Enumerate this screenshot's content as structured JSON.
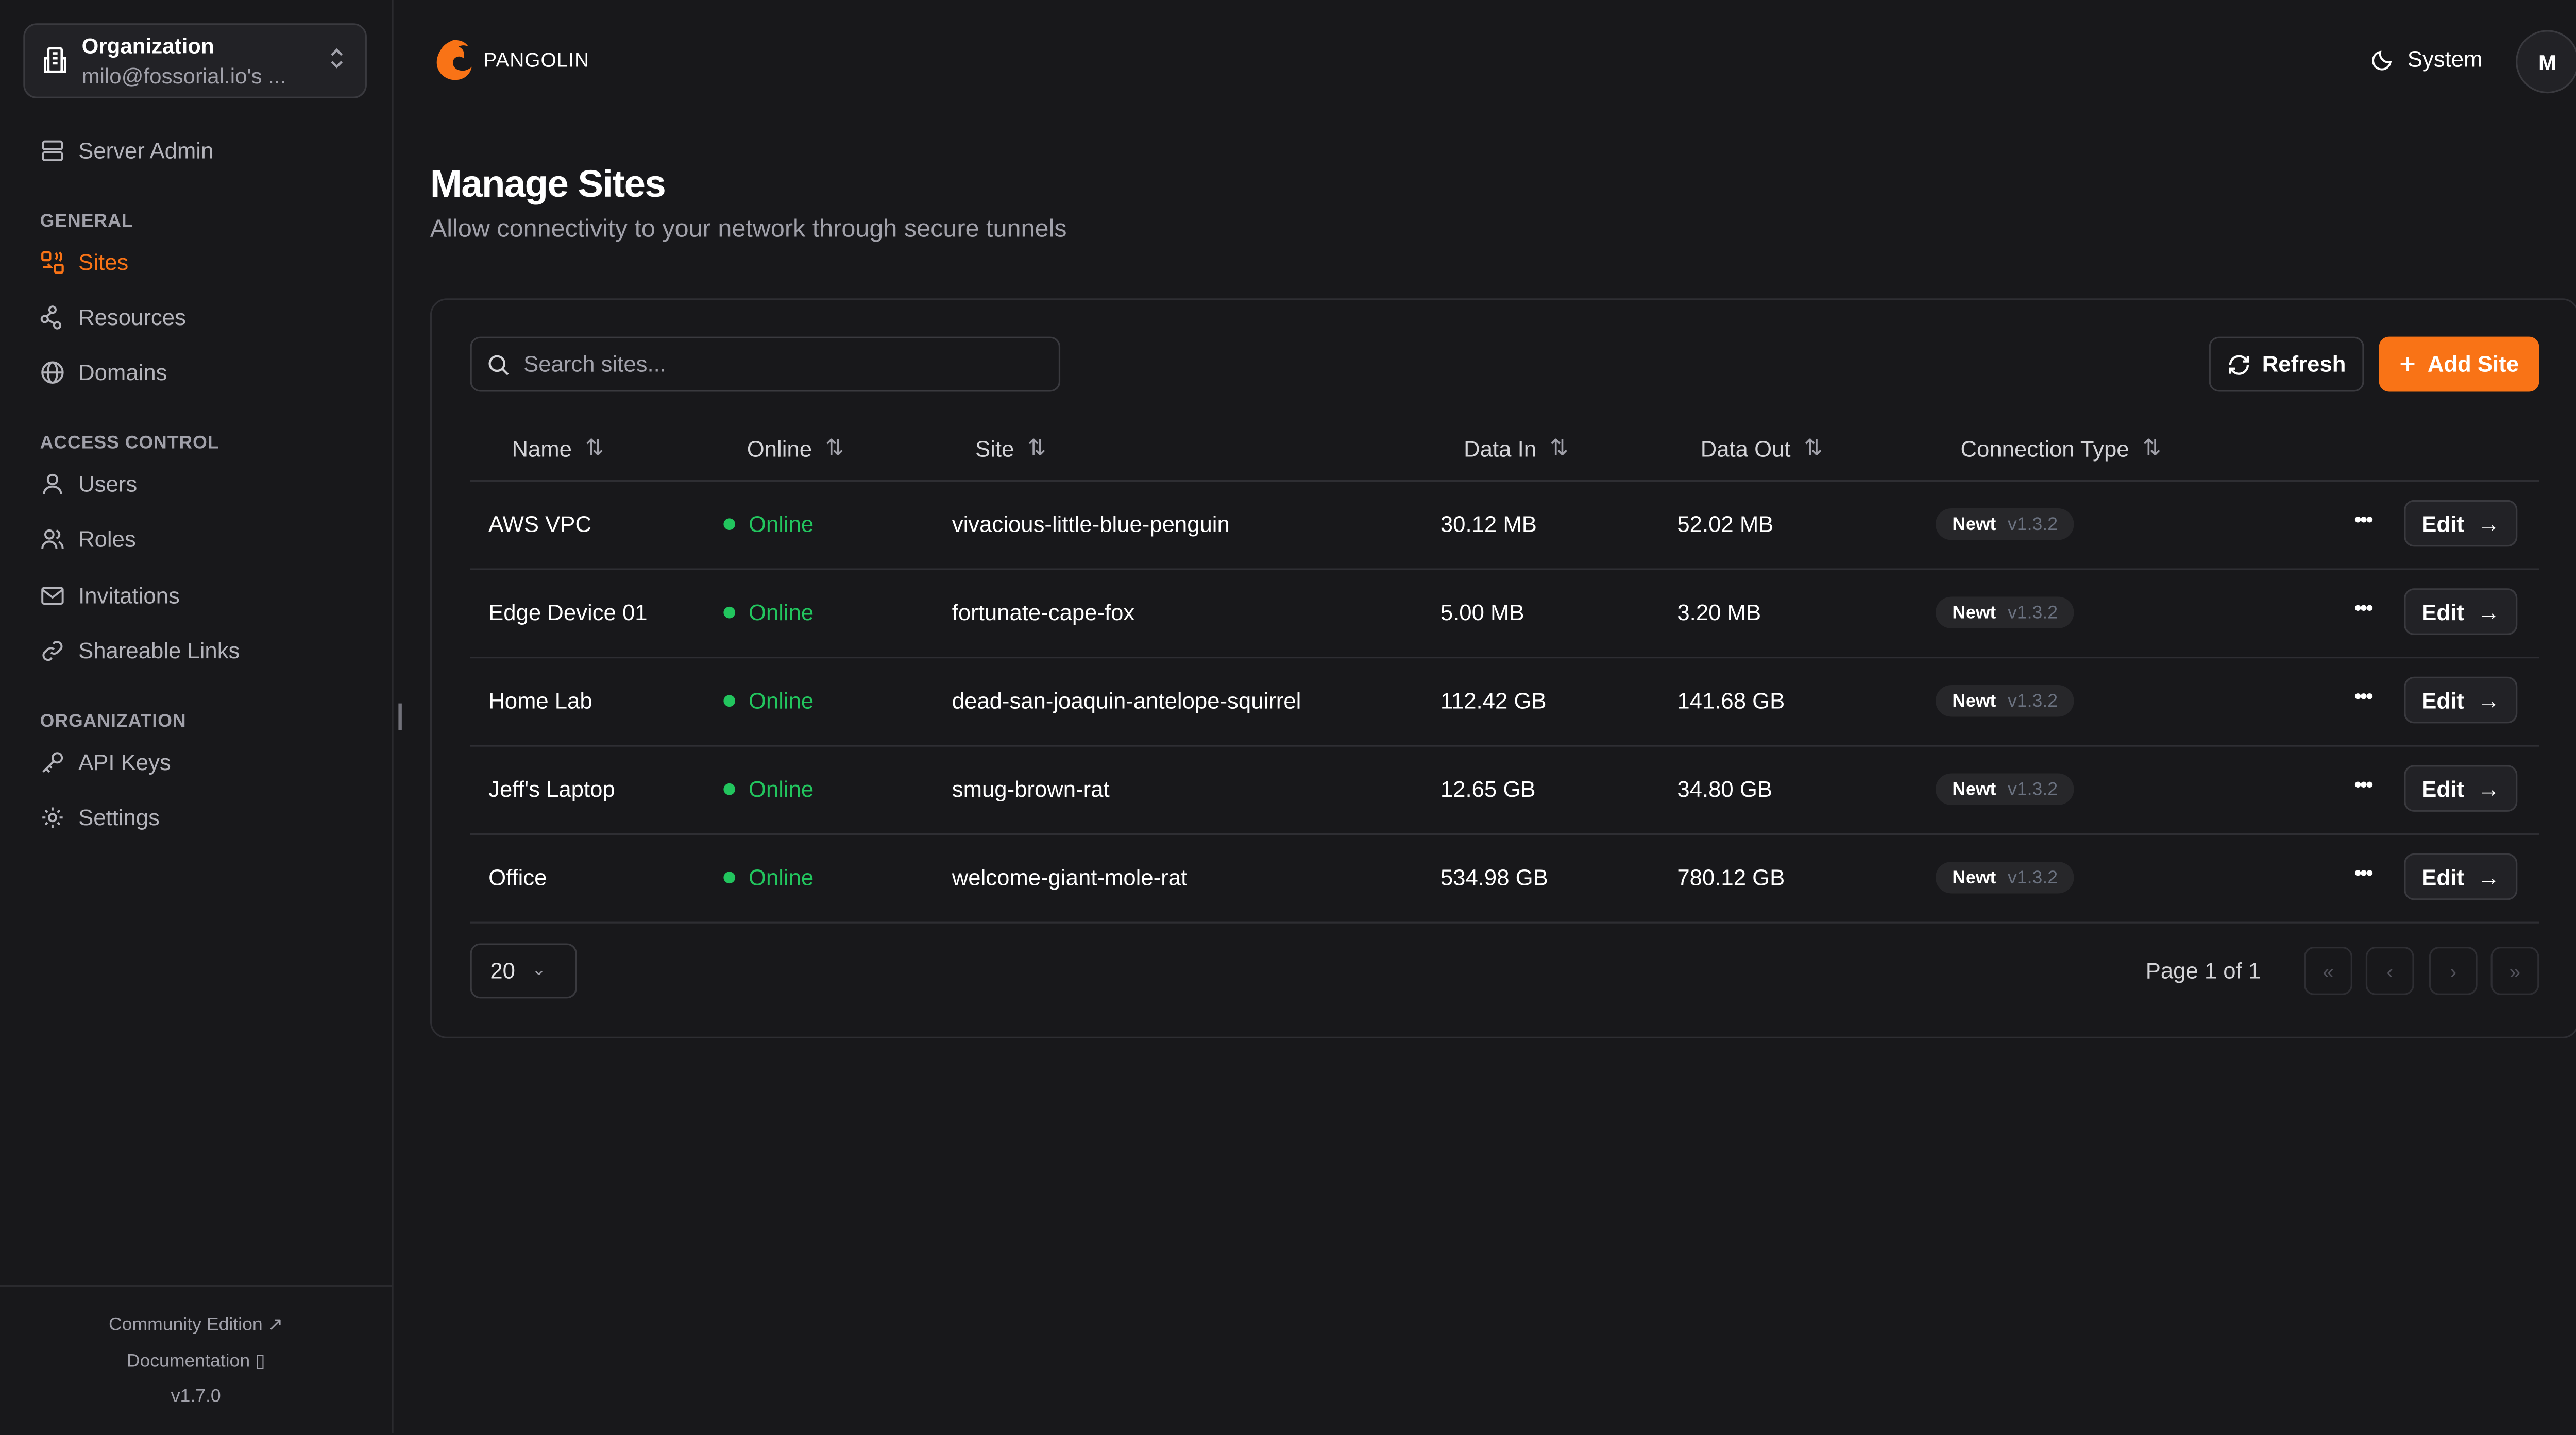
{
  "org": {
    "label": "Organization",
    "value": "milo@fossorial.io's ..."
  },
  "sidebar": {
    "server_admin": "Server Admin",
    "sections": [
      {
        "title": "GENERAL",
        "items": [
          {
            "label": "Sites",
            "icon": "sites-icon",
            "active": true
          },
          {
            "label": "Resources",
            "icon": "resources-icon"
          },
          {
            "label": "Domains",
            "icon": "globe-icon"
          }
        ]
      },
      {
        "title": "ACCESS CONTROL",
        "items": [
          {
            "label": "Users",
            "icon": "user-icon"
          },
          {
            "label": "Roles",
            "icon": "users-icon"
          },
          {
            "label": "Invitations",
            "icon": "mail-icon"
          },
          {
            "label": "Shareable Links",
            "icon": "link-icon"
          }
        ]
      },
      {
        "title": "ORGANIZATION",
        "items": [
          {
            "label": "API Keys",
            "icon": "key-icon"
          },
          {
            "label": "Settings",
            "icon": "gear-icon"
          }
        ]
      }
    ],
    "footer": {
      "community": "Community Edition",
      "docs": "Documentation",
      "version": "v1.7.0"
    }
  },
  "header": {
    "brand": "PANGOLIN",
    "theme": "System",
    "avatar": "M"
  },
  "page": {
    "title": "Manage Sites",
    "subtitle": "Allow connectivity to your network through secure tunnels"
  },
  "toolbar": {
    "search_placeholder": "Search sites...",
    "refresh": "Refresh",
    "add": "Add Site"
  },
  "table": {
    "columns": [
      "Name",
      "Online",
      "Site",
      "Data In",
      "Data Out",
      "Connection Type"
    ],
    "rows": [
      {
        "name": "AWS VPC",
        "online": "Online",
        "site": "vivacious-little-blue-penguin",
        "in": "30.12 MB",
        "out": "52.02 MB",
        "type": "Newt",
        "version": "v1.3.2"
      },
      {
        "name": "Edge Device 01",
        "online": "Online",
        "site": "fortunate-cape-fox",
        "in": "5.00 MB",
        "out": "3.20 MB",
        "type": "Newt",
        "version": "v1.3.2"
      },
      {
        "name": "Home Lab",
        "online": "Online",
        "site": "dead-san-joaquin-antelope-squirrel",
        "in": "112.42 GB",
        "out": "141.68 GB",
        "type": "Newt",
        "version": "v1.3.2"
      },
      {
        "name": "Jeff's Laptop",
        "online": "Online",
        "site": "smug-brown-rat",
        "in": "12.65 GB",
        "out": "34.80 GB",
        "type": "Newt",
        "version": "v1.3.2"
      },
      {
        "name": "Office",
        "online": "Online",
        "site": "welcome-giant-mole-rat",
        "in": "534.98 GB",
        "out": "780.12 GB",
        "type": "Newt",
        "version": "v1.3.2"
      }
    ],
    "edit": "Edit"
  },
  "pagination": {
    "page_size": "20",
    "info": "Page 1 of 1"
  },
  "colors": {
    "accent": "#f97316",
    "online": "#22c55e",
    "background": "#18181b"
  }
}
